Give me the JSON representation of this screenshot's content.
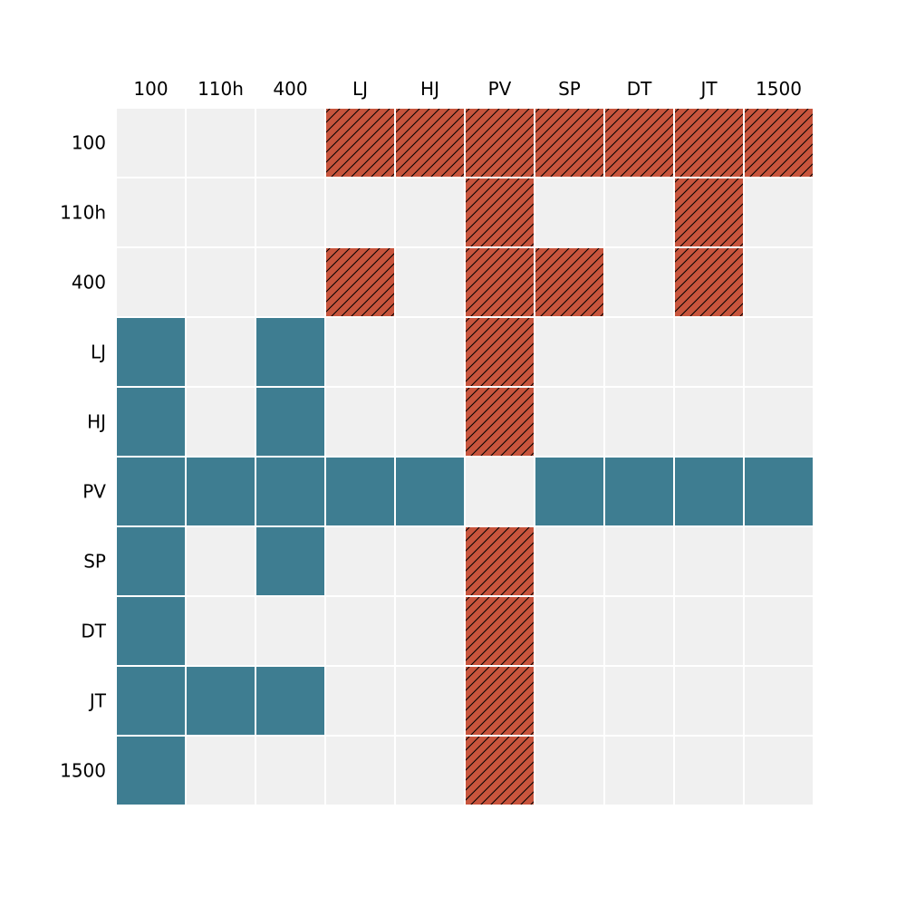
{
  "chart_data": {
    "type": "heatmap",
    "columns": [
      "100",
      "110h",
      "400",
      "LJ",
      "HJ",
      "PV",
      "SP",
      "DT",
      "JT",
      "1500"
    ],
    "rows": [
      "100",
      "110h",
      "400",
      "LJ",
      "HJ",
      "PV",
      "SP",
      "DT",
      "JT",
      "1500"
    ],
    "matrix": [
      [
        0,
        0,
        0,
        2,
        2,
        2,
        2,
        2,
        2,
        2
      ],
      [
        0,
        0,
        0,
        0,
        0,
        2,
        0,
        0,
        2,
        0
      ],
      [
        0,
        0,
        0,
        2,
        0,
        2,
        2,
        0,
        2,
        0
      ],
      [
        1,
        0,
        1,
        0,
        0,
        2,
        0,
        0,
        0,
        0
      ],
      [
        1,
        0,
        1,
        0,
        0,
        2,
        0,
        0,
        0,
        0
      ],
      [
        1,
        1,
        1,
        1,
        1,
        0,
        1,
        1,
        1,
        1
      ],
      [
        1,
        0,
        1,
        0,
        0,
        2,
        0,
        0,
        0,
        0
      ],
      [
        1,
        0,
        0,
        0,
        0,
        2,
        0,
        0,
        0,
        0
      ],
      [
        1,
        1,
        1,
        0,
        0,
        2,
        0,
        0,
        0,
        0
      ],
      [
        1,
        0,
        0,
        0,
        0,
        2,
        0,
        0,
        0,
        0
      ]
    ],
    "value_styles": {
      "0": {
        "fill": "#f0f0f0",
        "hatch": false
      },
      "1": {
        "fill": "#3e7d91",
        "hatch": false
      },
      "2": {
        "fill": "#c8553d",
        "hatch": true
      }
    },
    "column_labels_position": "top",
    "row_labels_position": "left",
    "grid": false
  },
  "colors": {
    "background": "#ffffff",
    "empty": "#f0f0f0",
    "blue": "#3e7d91",
    "red": "#c8553d",
    "separator": "#ffffff"
  }
}
